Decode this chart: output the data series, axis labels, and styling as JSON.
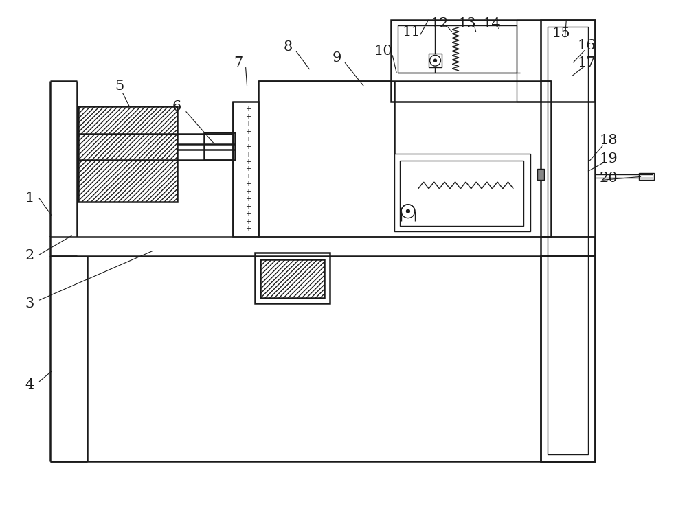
{
  "bg_color": "#ffffff",
  "line_color": "#1a1a1a",
  "fig_width": 10.0,
  "fig_height": 7.43,
  "lw_main": 1.8,
  "lw_thin": 1.0,
  "lw_label": 0.8,
  "label_fs": 15
}
